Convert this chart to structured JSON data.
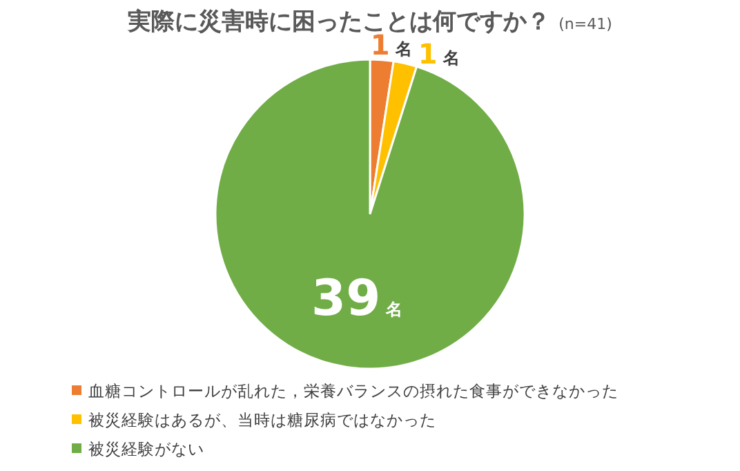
{
  "chart_data": {
    "type": "pie",
    "title": "実際に災害時に困ったことは何ですか？",
    "subtitle": "(n=41)",
    "categories": [
      "血糖コントロールが乱れた，栄養バランスの摂れた食事ができなかった",
      "被災経験はあるが、当時は糖尿病ではなかった",
      "被災経験がない"
    ],
    "values": [
      1,
      1,
      39
    ],
    "colors": [
      "#ed7d31",
      "#ffc000",
      "#70ad47"
    ],
    "value_labels": [
      "1名",
      "1名",
      "39名"
    ],
    "legend": "bottom"
  }
}
